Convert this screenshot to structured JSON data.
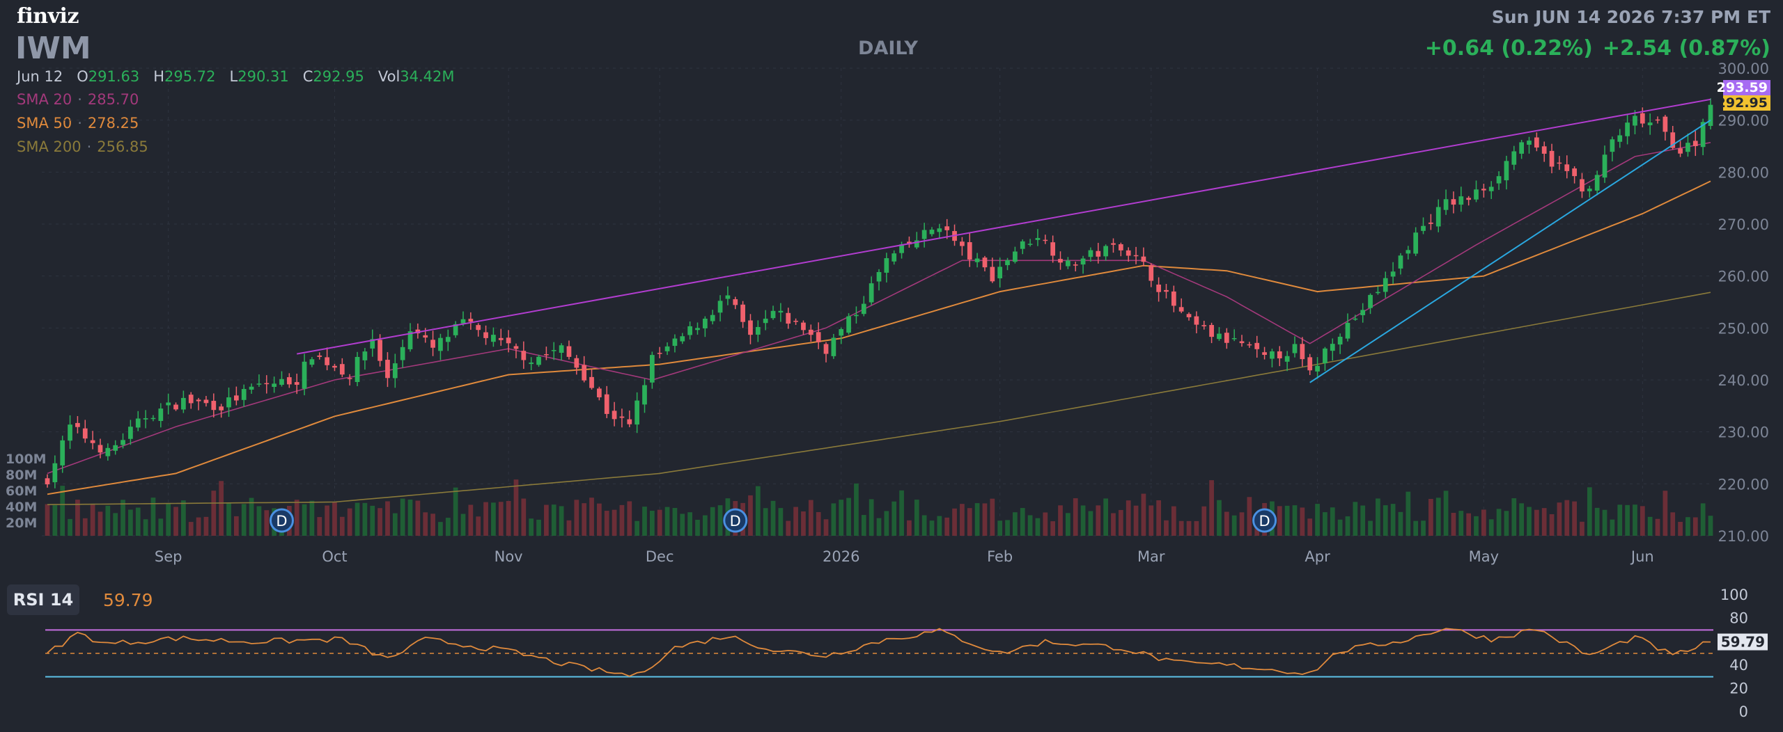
{
  "header": {
    "logo": "finviz",
    "ticker": "IWM",
    "timeframe": "DAILY",
    "datetime": "Sun JUN 14 2026 7:37 PM ET",
    "change_after": "+0.64 (0.22%)",
    "change_day": "+2.54 (0.87%)"
  },
  "ohlc": {
    "date": "Jun 12",
    "open_label": "O",
    "open": "291.63",
    "high_label": "H",
    "high": "295.72",
    "low_label": "L",
    "low": "290.31",
    "close_label": "C",
    "close": "292.95",
    "vol_label": "Vol",
    "vol": "34.42M"
  },
  "indicators": {
    "sma20": {
      "label": "SMA 20",
      "value": "285.70",
      "color": "#a3397b"
    },
    "sma50": {
      "label": "SMA 50",
      "value": "278.25",
      "color": "#e08a3c"
    },
    "sma200": {
      "label": "SMA 200",
      "value": "256.85",
      "color": "#8a7a3a"
    }
  },
  "price_tags": {
    "after_hours": "293.59",
    "close": "292.95"
  },
  "rsi": {
    "label": "RSI 14",
    "value": "59.79",
    "overbought": 70,
    "oversold": 30,
    "mid": 50
  },
  "colors": {
    "up": "#2bb05a",
    "down": "#f0616d",
    "volume_up": "#1f5e35",
    "volume_down": "#6b2e37",
    "trend_upper": "#b23dd0",
    "trend_lower": "#2aa8e0",
    "rsi_line": "#e08a3c",
    "background": "#22262f"
  },
  "chart_data": {
    "type": "candlestick",
    "title": "IWM",
    "price_axis": {
      "ticks": [
        "300.00",
        "290.00",
        "280.00",
        "270.00",
        "260.00",
        "250.00",
        "240.00",
        "230.00",
        "220.00",
        "210.00"
      ],
      "range": [
        210,
        300
      ]
    },
    "volume_axis": {
      "ticks": [
        "100M",
        "80M",
        "60M",
        "40M",
        "20M"
      ],
      "range": [
        0,
        100
      ]
    },
    "rsi_axis": {
      "ticks": [
        "100",
        "80",
        "60",
        "40",
        "20",
        "0"
      ],
      "range": [
        0,
        100
      ]
    },
    "x_labels": [
      {
        "label": "Sep",
        "date": "2025-09-01"
      },
      {
        "label": "Oct",
        "date": "2025-10-01"
      },
      {
        "label": "Nov",
        "date": "2025-11-03"
      },
      {
        "label": "Dec",
        "date": "2025-12-01"
      },
      {
        "label": "2026",
        "date": "2026-01-02"
      },
      {
        "label": "Feb",
        "date": "2026-02-02"
      },
      {
        "label": "Mar",
        "date": "2026-03-02"
      },
      {
        "label": "Apr",
        "date": "2026-04-01"
      },
      {
        "label": "May",
        "date": "2026-05-01"
      },
      {
        "label": "Jun",
        "date": "2026-06-01"
      }
    ],
    "dividends": [
      {
        "label": "D",
        "date": "2025-09-22"
      },
      {
        "label": "D",
        "date": "2025-12-15"
      },
      {
        "label": "D",
        "date": "2026-03-23"
      }
    ],
    "close_anchors": [
      {
        "date": "2025-08-08",
        "close": 221
      },
      {
        "date": "2025-08-13",
        "close": 231
      },
      {
        "date": "2025-08-20",
        "close": 226
      },
      {
        "date": "2025-08-27",
        "close": 233
      },
      {
        "date": "2025-09-03",
        "close": 236
      },
      {
        "date": "2025-09-10",
        "close": 235
      },
      {
        "date": "2025-09-17",
        "close": 239
      },
      {
        "date": "2025-09-24",
        "close": 240
      },
      {
        "date": "2025-09-26",
        "close": 245
      },
      {
        "date": "2025-10-03",
        "close": 241
      },
      {
        "date": "2025-10-08",
        "close": 248
      },
      {
        "date": "2025-10-10",
        "close": 240
      },
      {
        "date": "2025-10-15",
        "close": 250
      },
      {
        "date": "2025-10-20",
        "close": 246
      },
      {
        "date": "2025-10-24",
        "close": 251
      },
      {
        "date": "2025-10-31",
        "close": 247
      },
      {
        "date": "2025-11-06",
        "close": 244
      },
      {
        "date": "2025-11-12",
        "close": 246
      },
      {
        "date": "2025-11-17",
        "close": 241
      },
      {
        "date": "2025-11-20",
        "close": 234
      },
      {
        "date": "2025-11-25",
        "close": 231
      },
      {
        "date": "2025-11-28",
        "close": 244
      },
      {
        "date": "2025-12-03",
        "close": 247
      },
      {
        "date": "2025-12-09",
        "close": 252
      },
      {
        "date": "2025-12-12",
        "close": 256
      },
      {
        "date": "2025-12-17",
        "close": 248
      },
      {
        "date": "2025-12-22",
        "close": 253
      },
      {
        "date": "2025-12-26",
        "close": 250
      },
      {
        "date": "2025-12-31",
        "close": 246
      },
      {
        "date": "2026-01-06",
        "close": 253
      },
      {
        "date": "2026-01-12",
        "close": 263
      },
      {
        "date": "2026-01-16",
        "close": 267
      },
      {
        "date": "2026-01-21",
        "close": 270
      },
      {
        "date": "2026-01-26",
        "close": 265
      },
      {
        "date": "2026-01-30",
        "close": 260
      },
      {
        "date": "2026-02-04",
        "close": 265
      },
      {
        "date": "2026-02-09",
        "close": 268
      },
      {
        "date": "2026-02-13",
        "close": 262
      },
      {
        "date": "2026-02-18",
        "close": 264
      },
      {
        "date": "2026-02-24",
        "close": 266
      },
      {
        "date": "2026-02-27",
        "close": 262
      },
      {
        "date": "2026-03-04",
        "close": 256
      },
      {
        "date": "2026-03-09",
        "close": 251
      },
      {
        "date": "2026-03-13",
        "close": 248
      },
      {
        "date": "2026-03-18",
        "close": 247
      },
      {
        "date": "2026-03-23",
        "close": 244
      },
      {
        "date": "2026-03-27",
        "close": 246
      },
      {
        "date": "2026-03-31",
        "close": 241
      },
      {
        "date": "2026-04-03",
        "close": 248
      },
      {
        "date": "2026-04-08",
        "close": 252
      },
      {
        "date": "2026-04-14",
        "close": 259
      },
      {
        "date": "2026-04-20",
        "close": 268
      },
      {
        "date": "2026-04-24",
        "close": 274
      },
      {
        "date": "2026-04-29",
        "close": 275
      },
      {
        "date": "2026-05-04",
        "close": 278
      },
      {
        "date": "2026-05-08",
        "close": 286
      },
      {
        "date": "2026-05-13",
        "close": 283
      },
      {
        "date": "2026-05-18",
        "close": 280
      },
      {
        "date": "2026-05-21",
        "close": 276
      },
      {
        "date": "2026-05-26",
        "close": 286
      },
      {
        "date": "2026-05-29",
        "close": 290
      },
      {
        "date": "2026-06-03",
        "close": 289
      },
      {
        "date": "2026-06-08",
        "close": 284
      },
      {
        "date": "2026-06-10",
        "close": 286
      },
      {
        "date": "2026-06-12",
        "close": 292.95
      }
    ],
    "sma20_anchors": [
      {
        "date": "2025-08-08",
        "value": 222
      },
      {
        "date": "2025-09-02",
        "value": 231
      },
      {
        "date": "2025-10-01",
        "value": 240
      },
      {
        "date": "2025-11-03",
        "value": 246
      },
      {
        "date": "2025-11-28",
        "value": 240
      },
      {
        "date": "2025-12-31",
        "value": 250
      },
      {
        "date": "2026-01-26",
        "value": 263
      },
      {
        "date": "2026-02-27",
        "value": 263
      },
      {
        "date": "2026-03-16",
        "value": 256
      },
      {
        "date": "2026-03-31",
        "value": 247
      },
      {
        "date": "2026-04-30",
        "value": 266
      },
      {
        "date": "2026-05-29",
        "value": 283
      },
      {
        "date": "2026-06-12",
        "value": 285.7
      }
    ],
    "sma50_anchors": [
      {
        "date": "2025-08-08",
        "value": 218
      },
      {
        "date": "2025-09-02",
        "value": 222
      },
      {
        "date": "2025-10-01",
        "value": 233
      },
      {
        "date": "2025-11-03",
        "value": 241
      },
      {
        "date": "2025-12-01",
        "value": 243
      },
      {
        "date": "2026-01-02",
        "value": 248
      },
      {
        "date": "2026-02-02",
        "value": 257
      },
      {
        "date": "2026-02-27",
        "value": 262
      },
      {
        "date": "2026-03-16",
        "value": 261
      },
      {
        "date": "2026-04-01",
        "value": 257
      },
      {
        "date": "2026-05-01",
        "value": 260
      },
      {
        "date": "2026-06-01",
        "value": 272
      },
      {
        "date": "2026-06-12",
        "value": 278.25
      }
    ],
    "sma200_anchors": [
      {
        "date": "2025-08-08",
        "value": 216
      },
      {
        "date": "2025-10-01",
        "value": 216.5
      },
      {
        "date": "2025-12-01",
        "value": 222
      },
      {
        "date": "2026-02-02",
        "value": 232
      },
      {
        "date": "2026-04-01",
        "value": 243
      },
      {
        "date": "2026-06-12",
        "value": 256.85
      }
    ],
    "rsi_anchors": [
      {
        "date": "2025-08-08",
        "value": 50
      },
      {
        "date": "2025-08-14",
        "value": 67
      },
      {
        "date": "2025-08-20",
        "value": 58
      },
      {
        "date": "2025-09-02",
        "value": 63
      },
      {
        "date": "2025-09-16",
        "value": 60
      },
      {
        "date": "2025-10-02",
        "value": 62
      },
      {
        "date": "2025-10-10",
        "value": 45
      },
      {
        "date": "2025-10-17",
        "value": 62
      },
      {
        "date": "2025-11-03",
        "value": 52
      },
      {
        "date": "2025-11-13",
        "value": 40
      },
      {
        "date": "2025-11-21",
        "value": 33
      },
      {
        "date": "2025-11-26",
        "value": 31
      },
      {
        "date": "2025-12-03",
        "value": 55
      },
      {
        "date": "2025-12-12",
        "value": 65
      },
      {
        "date": "2025-12-22",
        "value": 53
      },
      {
        "date": "2025-12-31",
        "value": 48
      },
      {
        "date": "2026-01-12",
        "value": 62
      },
      {
        "date": "2026-01-21",
        "value": 69
      },
      {
        "date": "2026-02-02",
        "value": 50
      },
      {
        "date": "2026-02-10",
        "value": 60
      },
      {
        "date": "2026-02-24",
        "value": 55
      },
      {
        "date": "2026-03-05",
        "value": 42
      },
      {
        "date": "2026-03-16",
        "value": 40
      },
      {
        "date": "2026-03-31",
        "value": 33
      },
      {
        "date": "2026-04-06",
        "value": 52
      },
      {
        "date": "2026-04-17",
        "value": 62
      },
      {
        "date": "2026-04-24",
        "value": 72
      },
      {
        "date": "2026-05-04",
        "value": 62
      },
      {
        "date": "2026-05-12",
        "value": 71
      },
      {
        "date": "2026-05-21",
        "value": 48
      },
      {
        "date": "2026-05-29",
        "value": 64
      },
      {
        "date": "2026-06-05",
        "value": 48
      },
      {
        "date": "2026-06-12",
        "value": 59.79
      }
    ],
    "trendlines": [
      {
        "name": "upper",
        "from": {
          "date": "2025-09-24",
          "price": 245
        },
        "to": {
          "date": "2026-06-12",
          "price": 294
        }
      },
      {
        "name": "lower",
        "from": {
          "date": "2026-03-31",
          "price": 239.5
        },
        "to": {
          "date": "2026-06-12",
          "price": 290
        }
      }
    ]
  }
}
